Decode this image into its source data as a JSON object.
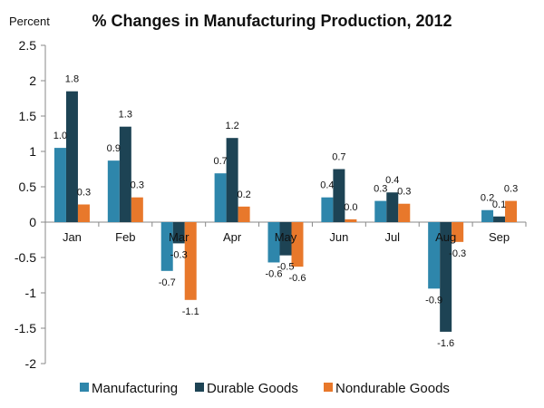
{
  "chart_data": {
    "type": "bar",
    "title": "% Changes in Manufacturing Production, 2012",
    "ylabel": "Percent",
    "xlabel": "",
    "ylim": [
      -2,
      2.5
    ],
    "yticks": [
      "2.5",
      "2",
      "1.5",
      "1",
      "0.5",
      "0",
      "-0.5",
      "-1",
      "-1.5",
      "-2"
    ],
    "categories": [
      "Jan",
      "Feb",
      "Mar",
      "Apr",
      "May",
      "Jun",
      "Jul",
      "Aug",
      "Sep"
    ],
    "series": [
      {
        "name": "Manufacturing",
        "color": "#2e86ab",
        "values": [
          1.05,
          0.87,
          -0.69,
          0.69,
          -0.57,
          0.35,
          0.3,
          -0.94,
          0.17
        ],
        "labels": [
          "1.0",
          "0.9",
          "-0.7",
          "0.7",
          "-0.6",
          "0.4",
          "0.3",
          "-0.9",
          "0.2"
        ]
      },
      {
        "name": "Durable Goods",
        "color": "#1d4354",
        "values": [
          1.85,
          1.35,
          -0.3,
          1.19,
          -0.47,
          0.75,
          0.42,
          -1.55,
          0.08
        ],
        "labels": [
          "1.8",
          "1.3",
          "-0.3",
          "1.2",
          "-0.5",
          "0.7",
          "0.4",
          "-1.6",
          "0.1"
        ]
      },
      {
        "name": "Nondurable Goods",
        "color": "#e8782b",
        "values": [
          0.25,
          0.35,
          -1.1,
          0.22,
          -0.63,
          0.04,
          0.26,
          -0.28,
          0.3
        ],
        "labels": [
          "0.3",
          "0.3",
          "-1.1",
          "0.2",
          "-0.6",
          "0.0",
          "0.3",
          "-0.3",
          "0.3"
        ]
      }
    ],
    "legend": "bottom",
    "grid": false
  }
}
